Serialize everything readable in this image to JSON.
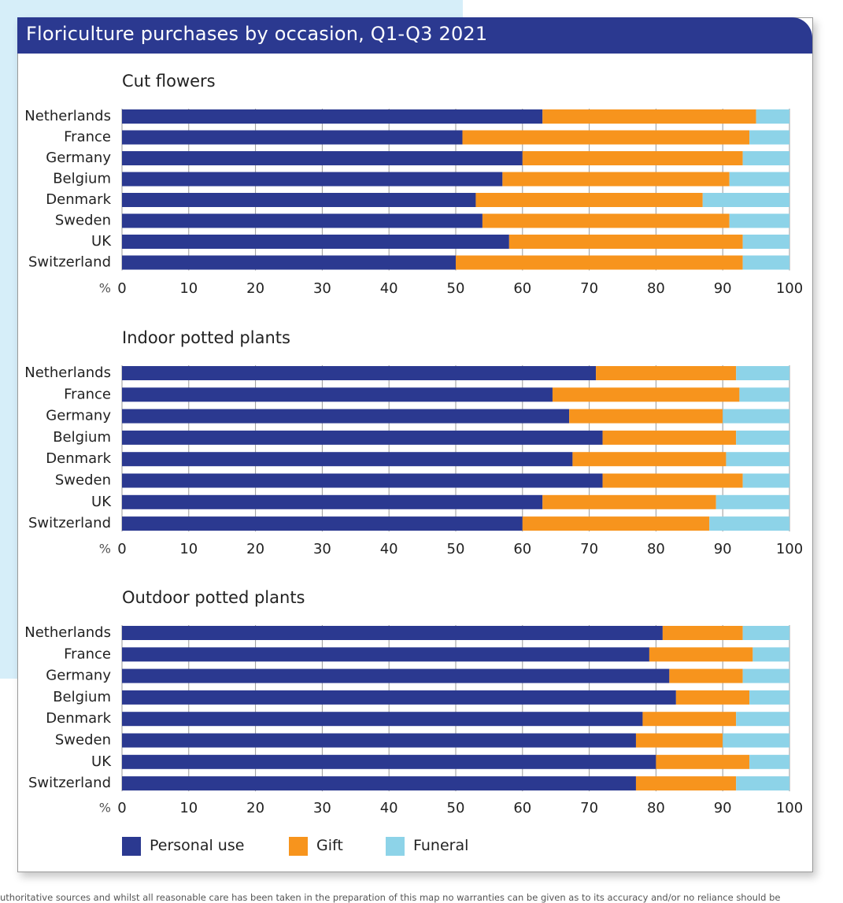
{
  "title": "Floriculture purchases by occasion, Q1-Q3 2021",
  "legend": [
    {
      "label": "Personal use",
      "color": "#2b3990"
    },
    {
      "label": "Gift",
      "color": "#f7941d"
    },
    {
      "label": "Funeral",
      "color": "#8dd3e8"
    }
  ],
  "footer": "uthoritative sources and whilst all reasonable care has been taken in the preparation of this map no warranties can be given as to its accuracy and/or no reliance should be",
  "chart_data": [
    {
      "type": "bar",
      "orientation": "horizontal",
      "stacked": true,
      "title": "Cut flowers",
      "axis_unit": "%",
      "xlim": [
        0,
        100
      ],
      "xticks": [
        0,
        10,
        20,
        30,
        40,
        50,
        60,
        70,
        80,
        90,
        100
      ],
      "grid": true,
      "categories": [
        "Netherlands",
        "France",
        "Germany",
        "Belgium",
        "Denmark",
        "Sweden",
        "UK",
        "Switzerland"
      ],
      "series": [
        {
          "name": "Personal use",
          "values": [
            63,
            51,
            60,
            57,
            53,
            54,
            58,
            50
          ]
        },
        {
          "name": "Gift",
          "values": [
            32,
            43,
            33,
            34,
            34,
            37,
            35,
            43
          ]
        },
        {
          "name": "Funeral",
          "values": [
            5,
            6,
            7,
            9,
            13,
            9,
            7,
            7
          ]
        }
      ]
    },
    {
      "type": "bar",
      "orientation": "horizontal",
      "stacked": true,
      "title": "Indoor potted plants",
      "axis_unit": "%",
      "xlim": [
        0,
        100
      ],
      "xticks": [
        0,
        10,
        20,
        30,
        40,
        50,
        60,
        70,
        80,
        90,
        100
      ],
      "grid": true,
      "categories": [
        "Netherlands",
        "France",
        "Germany",
        "Belgium",
        "Denmark",
        "Sweden",
        "UK",
        "Switzerland"
      ],
      "series": [
        {
          "name": "Personal use",
          "values": [
            71,
            64.5,
            67,
            72,
            67.5,
            72,
            63,
            60
          ]
        },
        {
          "name": "Gift",
          "values": [
            21,
            28,
            23,
            20,
            23,
            21,
            26,
            28
          ]
        },
        {
          "name": "Funeral",
          "values": [
            8,
            7.5,
            10,
            8,
            9.5,
            7,
            11,
            12
          ]
        }
      ]
    },
    {
      "type": "bar",
      "orientation": "horizontal",
      "stacked": true,
      "title": "Outdoor potted plants",
      "axis_unit": "%",
      "xlim": [
        0,
        100
      ],
      "xticks": [
        0,
        10,
        20,
        30,
        40,
        50,
        60,
        70,
        80,
        90,
        100
      ],
      "grid": true,
      "categories": [
        "Netherlands",
        "France",
        "Germany",
        "Belgium",
        "Denmark",
        "Sweden",
        "UK",
        "Switzerland"
      ],
      "series": [
        {
          "name": "Personal use",
          "values": [
            81,
            79,
            82,
            83,
            78,
            77,
            80,
            77
          ]
        },
        {
          "name": "Gift",
          "values": [
            12,
            15.5,
            11,
            11,
            14,
            13,
            14,
            15
          ]
        },
        {
          "name": "Funeral",
          "values": [
            7,
            5.5,
            7,
            6,
            8,
            10,
            6,
            8
          ]
        }
      ]
    }
  ]
}
